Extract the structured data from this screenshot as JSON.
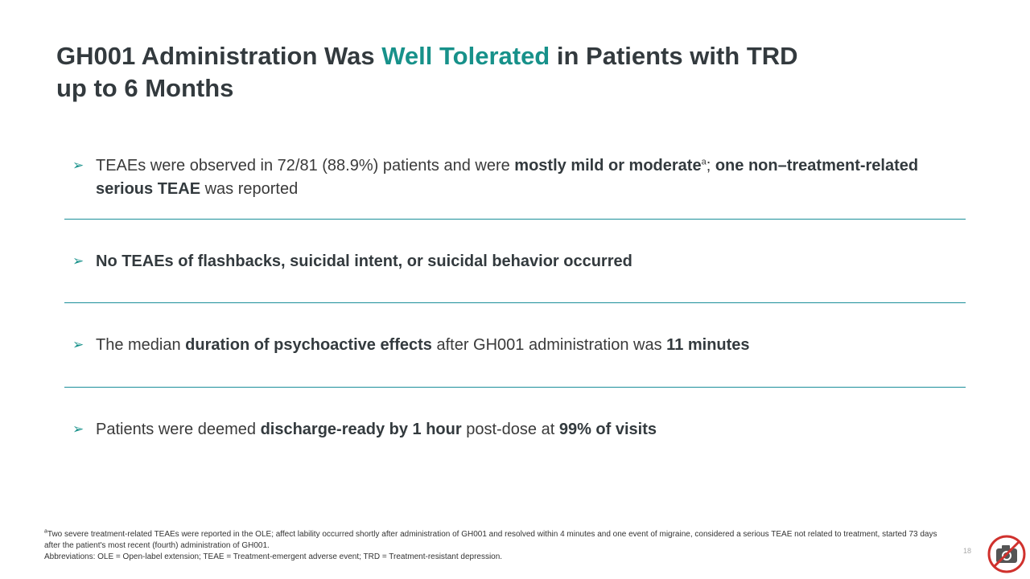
{
  "title": {
    "part1": "GH001 Administration Was ",
    "accent": "Well Tolerated",
    "part2": " in Patients with TRD",
    "line2": "up to 6 Months"
  },
  "bullets": {
    "b1": {
      "t1": "TEAEs were observed in 72/81 (88.9%) patients and were ",
      "h1": "mostly mild or moderate",
      "sup": "a",
      "t2": "; ",
      "b1": "one non–treatment-related serious TEAE",
      "t3": " was reported"
    },
    "b2": {
      "h1": "No TEAEs of flashbacks, suicidal intent, or suicidal behavior occurred"
    },
    "b3": {
      "t1": "The median ",
      "h1": "duration of psychoactive effects",
      "t2": " after GH001 administration was ",
      "h2": "11 minutes"
    },
    "b4": {
      "t1": "Patients were deemed ",
      "h1": "discharge-ready by 1 hour",
      "t2": " post-dose at ",
      "h2": "99% of visits"
    }
  },
  "footnote": {
    "sup": "a",
    "line1": "Two severe treatment-related TEAEs were reported in the OLE; affect lability occurred shortly after administration of GH001 and resolved within 4 minutes and one event of migraine, considered a serious TEAE not related to treatment, started 73 days after the patient's most recent (fourth) administration of GH001.",
    "abbreviations": "Abbreviations: OLE = Open-label extension; TEAE = Treatment-emergent adverse event; TRD = Treatment-resistant depression."
  },
  "page_number": "18",
  "icons": {
    "bullet": "arrow-bullet-icon",
    "no_photo": "no-photography-icon"
  },
  "colors": {
    "accent": "#17918a",
    "divider": "#1a8f9a",
    "no_photo_red": "#d0312d"
  }
}
